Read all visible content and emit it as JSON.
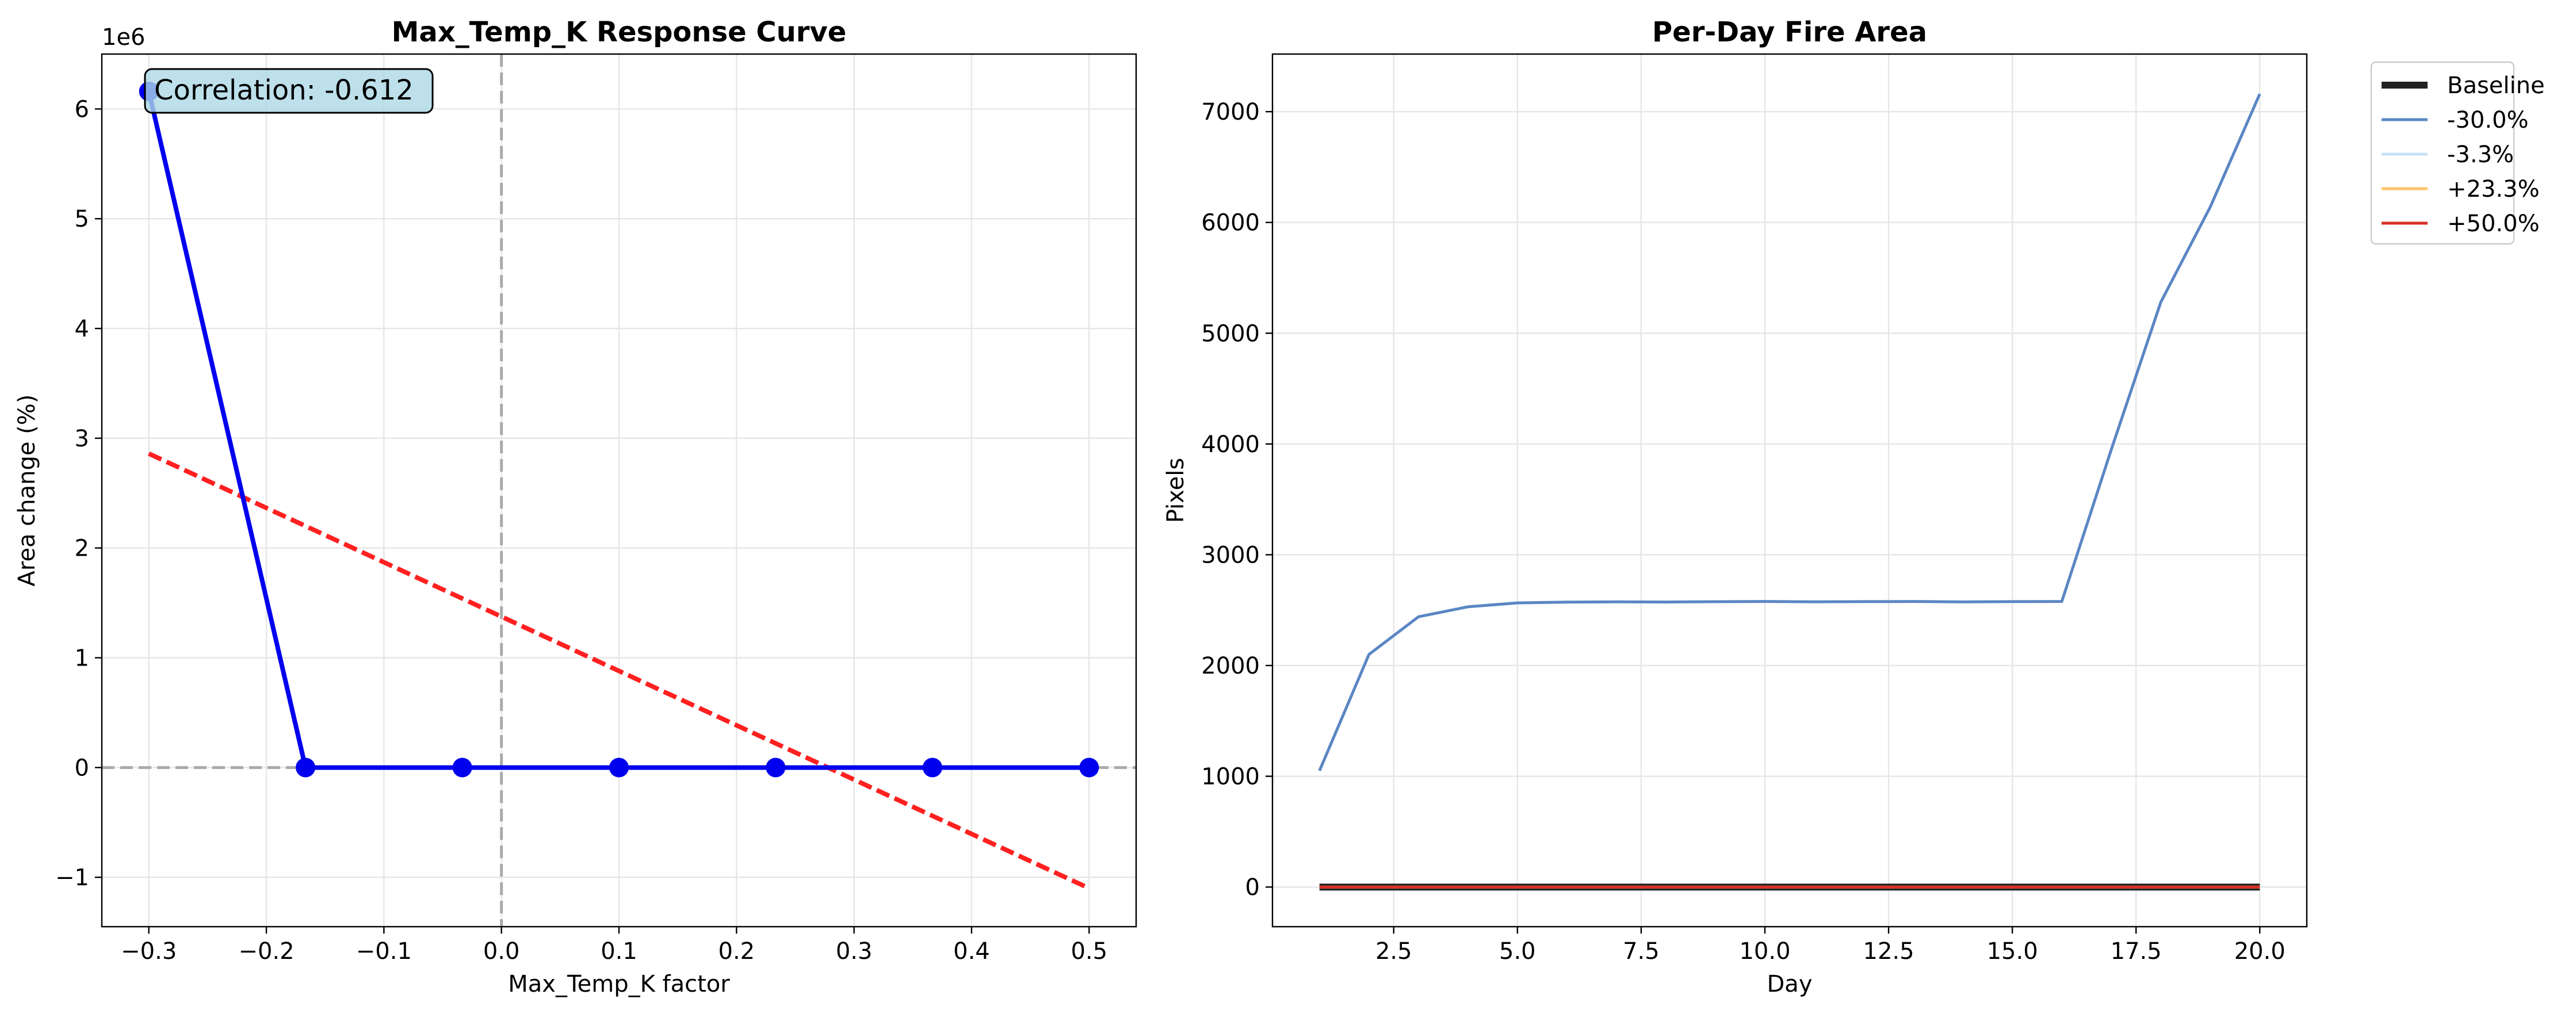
{
  "chart_data": [
    {
      "type": "line",
      "title": "Max_Temp_K Response Curve",
      "xlabel": "Max_Temp_K factor",
      "ylabel": "Area change (%)",
      "y_offset_label": "1e6",
      "xlim": [
        -0.34,
        0.54
      ],
      "ylim": [
        -1.45,
        6.5
      ],
      "x_ticks": [
        -0.3,
        -0.2,
        -0.1,
        0.0,
        0.1,
        0.2,
        0.3,
        0.4,
        0.5
      ],
      "x_tick_labels": [
        "−0.3",
        "−0.2",
        "−0.1",
        "0.0",
        "0.1",
        "0.2",
        "0.3",
        "0.4",
        "0.5"
      ],
      "y_ticks": [
        -1,
        0,
        1,
        2,
        3,
        4,
        5,
        6
      ],
      "y_tick_labels": [
        "−1",
        "0",
        "1",
        "2",
        "3",
        "4",
        "5",
        "6"
      ],
      "grid": true,
      "series": [
        {
          "kind": "line-markers",
          "color": "#0000ee",
          "x": [
            -0.3,
            -0.1667,
            -0.0333,
            0.1,
            0.2333,
            0.3667,
            0.5
          ],
          "y": [
            6.16,
            0.0,
            0.0,
            0.0,
            0.0,
            0.0,
            0.0
          ]
        },
        {
          "kind": "trend-dashed",
          "color": "#ff2020",
          "x": [
            -0.3,
            0.5
          ],
          "y": [
            2.86,
            -1.1
          ]
        }
      ],
      "reference_lines": {
        "x": 0,
        "y": 0,
        "color": "#aaaaaa"
      },
      "annotation": "Correlation: -0.612"
    },
    {
      "type": "line",
      "title": "Per-Day Fire Area",
      "xlabel": "Day",
      "ylabel": "Pixels",
      "xlim": [
        0.05,
        20.95
      ],
      "ylim": [
        -358,
        7520
      ],
      "x_ticks": [
        2.5,
        5.0,
        7.5,
        10.0,
        12.5,
        15.0,
        17.5,
        20.0
      ],
      "x_tick_labels": [
        "2.5",
        "5.0",
        "7.5",
        "10.0",
        "12.5",
        "15.0",
        "17.5",
        "20.0"
      ],
      "y_ticks": [
        0,
        1000,
        2000,
        3000,
        4000,
        5000,
        6000,
        7000
      ],
      "y_tick_labels": [
        "0",
        "1000",
        "2000",
        "3000",
        "4000",
        "5000",
        "6000",
        "7000"
      ],
      "grid": true,
      "legend_position": "outside-top-right",
      "x": [
        1,
        2,
        3,
        4,
        5,
        6,
        7,
        8,
        9,
        10,
        11,
        12,
        13,
        14,
        15,
        16,
        17,
        18,
        19,
        20
      ],
      "series": [
        {
          "name": "Baseline",
          "color": "#222222",
          "width": 12,
          "values": [
            0,
            0,
            0,
            0,
            0,
            0,
            0,
            0,
            0,
            0,
            0,
            0,
            0,
            0,
            0,
            0,
            0,
            0,
            0,
            0
          ]
        },
        {
          "name": "-30.0%",
          "color": "#5b86c4",
          "width": 5,
          "values": [
            1050,
            2100,
            2440,
            2530,
            2565,
            2572,
            2575,
            2573,
            2576,
            2578,
            2575,
            2577,
            2578,
            2574,
            2577,
            2578,
            3950,
            5280,
            6140,
            7160
          ]
        },
        {
          "name": "-3.3%",
          "color": "#c6e2f4",
          "width": 5,
          "values": [
            0,
            0,
            0,
            0,
            0,
            0,
            0,
            0,
            0,
            0,
            0,
            0,
            0,
            0,
            0,
            0,
            0,
            0,
            0,
            0
          ]
        },
        {
          "name": "+23.3%",
          "color": "#ffc36a",
          "width": 5,
          "values": [
            0,
            0,
            0,
            0,
            0,
            0,
            0,
            0,
            0,
            0,
            0,
            0,
            0,
            0,
            0,
            0,
            0,
            0,
            0,
            0
          ]
        },
        {
          "name": "+50.0%",
          "color": "#d73027",
          "width": 5,
          "values": [
            0,
            0,
            0,
            0,
            0,
            0,
            0,
            0,
            0,
            0,
            0,
            0,
            0,
            0,
            0,
            0,
            0,
            0,
            0,
            0
          ]
        }
      ]
    }
  ]
}
